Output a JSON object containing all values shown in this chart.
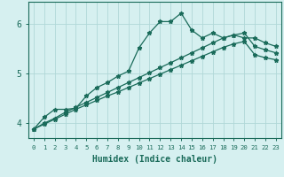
{
  "xlabel": "Humidex (Indice chaleur)",
  "background_color": "#d6f0f0",
  "grid_color": "#b0d8d8",
  "line_color": "#1a6b5a",
  "xlim": [
    -0.5,
    23.5
  ],
  "ylim": [
    3.7,
    6.45
  ],
  "yticks": [
    4,
    5,
    6
  ],
  "xticks": [
    0,
    1,
    2,
    3,
    4,
    5,
    6,
    7,
    8,
    9,
    10,
    11,
    12,
    13,
    14,
    15,
    16,
    17,
    18,
    19,
    20,
    21,
    22,
    23
  ],
  "line1_x": [
    0,
    1,
    2,
    3,
    4,
    5,
    6,
    7,
    8,
    9,
    10,
    11,
    12,
    13,
    14,
    15,
    16,
    17,
    18,
    19,
    20,
    21,
    22,
    23
  ],
  "line1_y": [
    3.88,
    4.12,
    4.28,
    4.28,
    4.3,
    4.55,
    4.72,
    4.82,
    4.95,
    5.05,
    5.52,
    5.82,
    6.05,
    6.05,
    6.22,
    5.88,
    5.72,
    5.82,
    5.72,
    5.78,
    5.72,
    5.72,
    5.62,
    5.55
  ],
  "line2_x": [
    0,
    1,
    2,
    3,
    4,
    5,
    6,
    7,
    8,
    9,
    10,
    11,
    12,
    13,
    14,
    15,
    16,
    17,
    18,
    19,
    20,
    21,
    22,
    23
  ],
  "line2_y": [
    3.88,
    4.0,
    4.1,
    4.22,
    4.32,
    4.42,
    4.52,
    4.62,
    4.72,
    4.82,
    4.92,
    5.02,
    5.12,
    5.22,
    5.32,
    5.42,
    5.52,
    5.62,
    5.72,
    5.78,
    5.82,
    5.55,
    5.48,
    5.42
  ],
  "line3_x": [
    0,
    1,
    2,
    3,
    4,
    5,
    6,
    7,
    8,
    9,
    10,
    11,
    12,
    13,
    14,
    15,
    16,
    17,
    18,
    19,
    20,
    21,
    22,
    23
  ],
  "line3_y": [
    3.88,
    3.98,
    4.08,
    4.18,
    4.28,
    4.37,
    4.46,
    4.55,
    4.63,
    4.72,
    4.81,
    4.9,
    4.99,
    5.08,
    5.17,
    5.26,
    5.35,
    5.44,
    5.53,
    5.6,
    5.65,
    5.38,
    5.32,
    5.28
  ],
  "marker": "*",
  "markersize": 3.5,
  "linewidth": 0.9
}
